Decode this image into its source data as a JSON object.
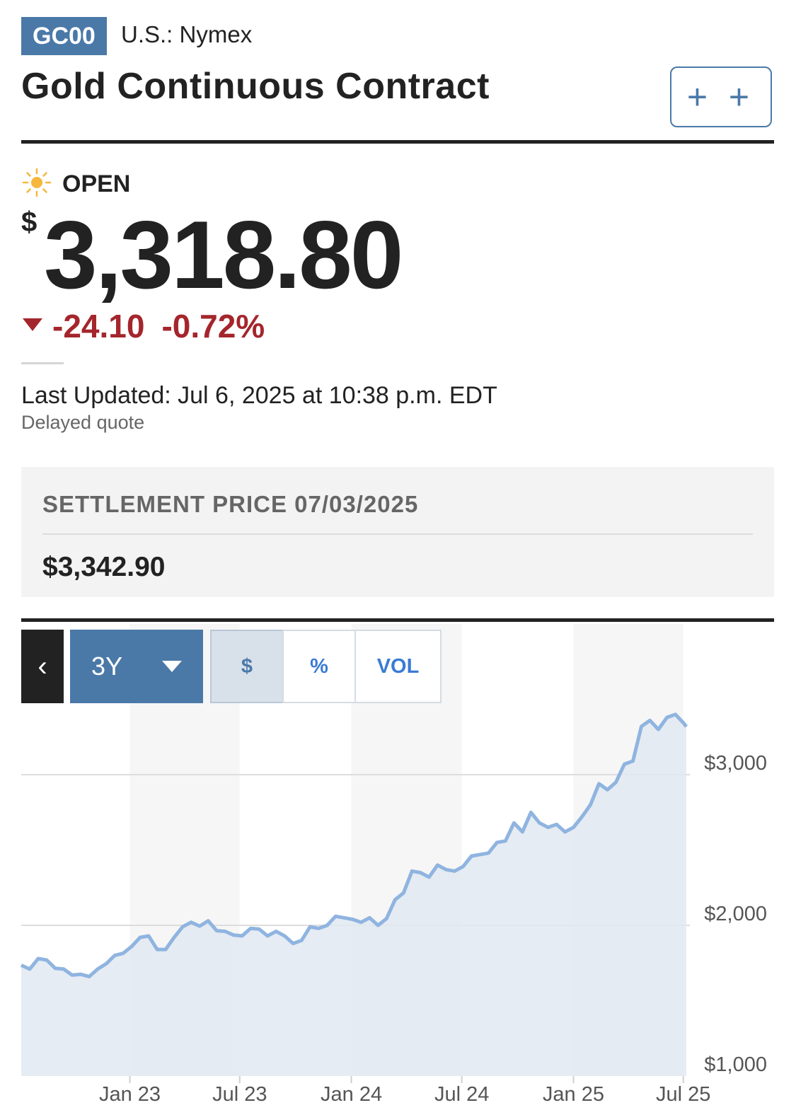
{
  "header": {
    "symbol": "GC00",
    "exchange": "U.S.: Nymex",
    "title": "Gold Continuous Contract",
    "add_button_label": "+ +"
  },
  "quote": {
    "status": "OPEN",
    "status_icon": "sun-icon",
    "currency_symbol": "$",
    "price": "3,318.80",
    "change": "-24.10",
    "change_percent": "-0.72%",
    "direction_icon": "triangle-down-icon",
    "last_updated": "Last Updated: Jul 6, 2025 at 10:38 p.m. EDT",
    "delay_note": "Delayed quote",
    "down_color": "#a4262c"
  },
  "settlement": {
    "label": "SETTLEMENT PRICE 07/03/2025",
    "value": "$3,342.90"
  },
  "chart_controls": {
    "back_icon": "chevron-left-icon",
    "range": "3Y",
    "modes": [
      "$",
      "%",
      "VOL"
    ],
    "active_mode": "$"
  },
  "chart_data": {
    "type": "area",
    "x_labels": [
      "Jan 23",
      "Jul 23",
      "Jan 24",
      "Jul 24",
      "Jan 25",
      "Jul 25"
    ],
    "y_labels": [
      "$3,000",
      "$2,000",
      "$1,000"
    ],
    "ylim": [
      1000,
      3400
    ],
    "line_color": "#8fb4e0",
    "fill_color": "#e2e9f1",
    "points": [
      [
        "2022-07-06",
        1735
      ],
      [
        "2022-07-20",
        1710
      ],
      [
        "2022-08-03",
        1780
      ],
      [
        "2022-08-17",
        1770
      ],
      [
        "2022-08-31",
        1715
      ],
      [
        "2022-09-14",
        1710
      ],
      [
        "2022-09-28",
        1670
      ],
      [
        "2022-10-12",
        1675
      ],
      [
        "2022-10-26",
        1660
      ],
      [
        "2022-11-09",
        1710
      ],
      [
        "2022-11-23",
        1745
      ],
      [
        "2022-12-07",
        1800
      ],
      [
        "2022-12-21",
        1815
      ],
      [
        "2023-01-04",
        1860
      ],
      [
        "2023-01-18",
        1920
      ],
      [
        "2023-02-01",
        1930
      ],
      [
        "2023-02-15",
        1840
      ],
      [
        "2023-03-01",
        1840
      ],
      [
        "2023-03-15",
        1920
      ],
      [
        "2023-03-29",
        1990
      ],
      [
        "2023-04-12",
        2020
      ],
      [
        "2023-04-26",
        1995
      ],
      [
        "2023-05-10",
        2030
      ],
      [
        "2023-05-24",
        1965
      ],
      [
        "2023-06-07",
        1960
      ],
      [
        "2023-06-21",
        1935
      ],
      [
        "2023-07-05",
        1930
      ],
      [
        "2023-07-19",
        1980
      ],
      [
        "2023-08-02",
        1975
      ],
      [
        "2023-08-16",
        1930
      ],
      [
        "2023-08-30",
        1960
      ],
      [
        "2023-09-13",
        1930
      ],
      [
        "2023-09-27",
        1880
      ],
      [
        "2023-10-11",
        1900
      ],
      [
        "2023-10-25",
        1990
      ],
      [
        "2023-11-08",
        1980
      ],
      [
        "2023-11-22",
        2000
      ],
      [
        "2023-12-06",
        2060
      ],
      [
        "2023-12-20",
        2050
      ],
      [
        "2024-01-03",
        2040
      ],
      [
        "2024-01-17",
        2020
      ],
      [
        "2024-01-31",
        2050
      ],
      [
        "2024-02-14",
        2000
      ],
      [
        "2024-02-28",
        2045
      ],
      [
        "2024-03-13",
        2170
      ],
      [
        "2024-03-27",
        2215
      ],
      [
        "2024-04-10",
        2360
      ],
      [
        "2024-04-24",
        2350
      ],
      [
        "2024-05-08",
        2320
      ],
      [
        "2024-05-22",
        2400
      ],
      [
        "2024-06-05",
        2370
      ],
      [
        "2024-06-19",
        2360
      ],
      [
        "2024-07-03",
        2390
      ],
      [
        "2024-07-17",
        2460
      ],
      [
        "2024-07-31",
        2470
      ],
      [
        "2024-08-14",
        2480
      ],
      [
        "2024-08-28",
        2550
      ],
      [
        "2024-09-11",
        2560
      ],
      [
        "2024-09-25",
        2680
      ],
      [
        "2024-10-09",
        2620
      ],
      [
        "2024-10-23",
        2750
      ],
      [
        "2024-11-06",
        2680
      ],
      [
        "2024-11-20",
        2650
      ],
      [
        "2024-12-04",
        2670
      ],
      [
        "2024-12-18",
        2620
      ],
      [
        "2025-01-01",
        2650
      ],
      [
        "2025-01-15",
        2720
      ],
      [
        "2025-01-29",
        2800
      ],
      [
        "2025-02-12",
        2940
      ],
      [
        "2025-02-26",
        2900
      ],
      [
        "2025-03-12",
        2950
      ],
      [
        "2025-03-26",
        3070
      ],
      [
        "2025-04-09",
        3090
      ],
      [
        "2025-04-23",
        3320
      ],
      [
        "2025-05-07",
        3360
      ],
      [
        "2025-05-21",
        3300
      ],
      [
        "2025-06-04",
        3380
      ],
      [
        "2025-06-18",
        3400
      ],
      [
        "2025-07-02",
        3340
      ],
      [
        "2025-07-06",
        3319
      ]
    ]
  }
}
